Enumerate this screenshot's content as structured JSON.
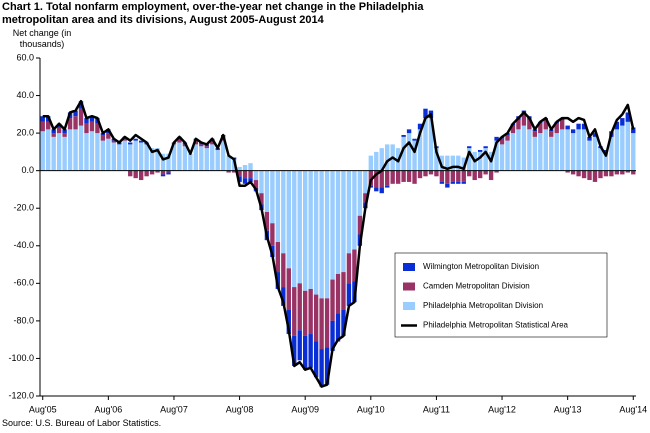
{
  "chart_data": {
    "type": "bar",
    "title": "Chart 1. Total nonfarm employment, over-the-year net change in the Philadelphia metropolitan area and its divisions, August 2005-August 2014",
    "y_label": "Net change (in thousands)",
    "source": "Source: U.S. Bureau of Labor Statistics.",
    "categories": [
      "Aug'05",
      null,
      null,
      null,
      null,
      null,
      null,
      null,
      null,
      null,
      null,
      null,
      "Aug'06",
      null,
      null,
      null,
      null,
      null,
      null,
      null,
      null,
      null,
      null,
      null,
      "Aug'07",
      null,
      null,
      null,
      null,
      null,
      null,
      null,
      null,
      null,
      null,
      null,
      "Aug'08",
      null,
      null,
      null,
      null,
      null,
      null,
      null,
      null,
      null,
      null,
      null,
      "Aug'09",
      null,
      null,
      null,
      null,
      null,
      null,
      null,
      null,
      null,
      null,
      null,
      "Aug'10",
      null,
      null,
      null,
      null,
      null,
      null,
      null,
      null,
      null,
      null,
      null,
      "Aug'11",
      null,
      null,
      null,
      null,
      null,
      null,
      null,
      null,
      null,
      null,
      null,
      "Aug'12",
      null,
      null,
      null,
      null,
      null,
      null,
      null,
      null,
      null,
      null,
      null,
      "Aug'13",
      null,
      null,
      null,
      null,
      null,
      null,
      null,
      null,
      null,
      null,
      null,
      "Aug'14"
    ],
    "series": [
      {
        "name": "Wilmington Metropolitan Division",
        "color": "#0a2ed6",
        "values": [
          3,
          3,
          2,
          2,
          2,
          3,
          3,
          4,
          3,
          3,
          3,
          1,
          2,
          1,
          1,
          1,
          1,
          1,
          1,
          1,
          0,
          0,
          -1,
          -1,
          0,
          1,
          1,
          0,
          1,
          1,
          1,
          1,
          1,
          1,
          0,
          1,
          -3,
          -3,
          -2,
          -2,
          -3,
          -5,
          -6,
          -9,
          -10,
          -13,
          -16,
          -16,
          -18,
          -18,
          -19,
          -20,
          -20,
          -16,
          -15,
          -14,
          -12,
          -11,
          -6,
          -3,
          -1,
          -2,
          -3,
          -1,
          0,
          0,
          1,
          2,
          1,
          3,
          5,
          4,
          1,
          -1,
          -2,
          -1,
          -1,
          -1,
          1,
          0,
          1,
          1,
          0,
          2,
          1,
          1,
          1,
          2,
          2,
          2,
          1,
          1,
          1,
          1,
          1,
          1,
          2,
          2,
          3,
          3,
          2,
          2,
          1,
          1,
          3,
          4,
          4,
          5,
          3
        ]
      },
      {
        "name": "Camden Metropolitan Division",
        "color": "#993366",
        "values": [
          5,
          4,
          2,
          3,
          2,
          6,
          7,
          9,
          5,
          5,
          5,
          3,
          3,
          1,
          0,
          1,
          -3,
          -4,
          -5,
          -3,
          -2,
          -1,
          -2,
          -1,
          1,
          2,
          1,
          0,
          2,
          1,
          1,
          2,
          0,
          2,
          -1,
          -1,
          -3,
          -4,
          -4,
          -4,
          -6,
          -10,
          -12,
          -16,
          -18,
          -22,
          -26,
          -25,
          -24,
          -24,
          -25,
          -27,
          -26,
          -22,
          -21,
          -20,
          -16,
          -17,
          -10,
          -5,
          -8,
          -9,
          -9,
          -8,
          -7,
          -7,
          -6,
          -6,
          -7,
          -4,
          -3,
          -2,
          -3,
          -6,
          -7,
          -6,
          -6,
          -6,
          -3,
          -5,
          -4,
          -2,
          -5,
          -1,
          3,
          3,
          4,
          5,
          6,
          5,
          3,
          5,
          5,
          3,
          5,
          5,
          -1,
          -2,
          -3,
          -4,
          -5,
          -6,
          -4,
          -3,
          -3,
          -2,
          -2,
          -1,
          -2
        ]
      },
      {
        "name": "Philadelphia Metropolitan Division",
        "color": "#99ccff",
        "values": [
          21,
          22,
          18,
          20,
          18,
          22,
          22,
          24,
          20,
          21,
          20,
          16,
          17,
          15,
          14,
          16,
          14,
          16,
          15,
          14,
          12,
          12,
          9,
          9,
          14,
          15,
          13,
          9,
          14,
          13,
          12,
          14,
          11,
          16,
          8,
          6,
          2,
          3,
          4,
          -5,
          -12,
          -22,
          -28,
          -38,
          -44,
          -52,
          -62,
          -60,
          -64,
          -63,
          -66,
          -68,
          -68,
          -58,
          -55,
          -54,
          -44,
          -42,
          -24,
          -12,
          8,
          10,
          12,
          14,
          14,
          12,
          18,
          20,
          16,
          22,
          28,
          28,
          12,
          8,
          8,
          8,
          8,
          7,
          12,
          10,
          10,
          12,
          10,
          16,
          14,
          16,
          20,
          22,
          24,
          22,
          18,
          20,
          22,
          18,
          20,
          22,
          22,
          20,
          22,
          22,
          16,
          18,
          12,
          10,
          18,
          22,
          24,
          26,
          20
        ]
      },
      {
        "name": "Philadelphia Metropolitan Statistical Area",
        "type": "line",
        "color": "#000000",
        "values": [
          29,
          29,
          22,
          25,
          22,
          31,
          32,
          37,
          28,
          29,
          28,
          20,
          22,
          17,
          15,
          18,
          16,
          19,
          17,
          15,
          10,
          11,
          6,
          7,
          15,
          18,
          15,
          9,
          17,
          15,
          14,
          17,
          12,
          19,
          8,
          6,
          -8,
          -8,
          -6,
          -10,
          -20,
          -35,
          -45,
          -62,
          -70,
          -85,
          -104,
          -102,
          -106,
          -105,
          -110,
          -115,
          -114,
          -95,
          -90,
          -88,
          -72,
          -70,
          -40,
          -20,
          -5,
          -2,
          0,
          5,
          7,
          5,
          12,
          15,
          10,
          20,
          28,
          30,
          10,
          2,
          1,
          2,
          2,
          1,
          10,
          5,
          7,
          10,
          5,
          15,
          18,
          20,
          25,
          28,
          31,
          28,
          22,
          26,
          28,
          22,
          26,
          28,
          28,
          26,
          28,
          27,
          18,
          22,
          13,
          8,
          20,
          27,
          30,
          35,
          22
        ]
      }
    ],
    "stacked": true,
    "ylim": [
      -120,
      60
    ],
    "yticks": [
      {
        "value": -120,
        "label": "-120.0"
      },
      {
        "value": -100,
        "label": "-100.0"
      },
      {
        "value": -80,
        "label": "-80.0"
      },
      {
        "value": -60,
        "label": "-60.0"
      },
      {
        "value": -40,
        "label": "-40.0"
      },
      {
        "value": -20,
        "label": "-20.0"
      },
      {
        "value": 0,
        "label": "0.0"
      },
      {
        "value": 20,
        "label": "20.0"
      },
      {
        "value": 40,
        "label": "40.0"
      },
      {
        "value": 60,
        "label": "60.0"
      }
    ],
    "grid": false,
    "legend": "right"
  }
}
